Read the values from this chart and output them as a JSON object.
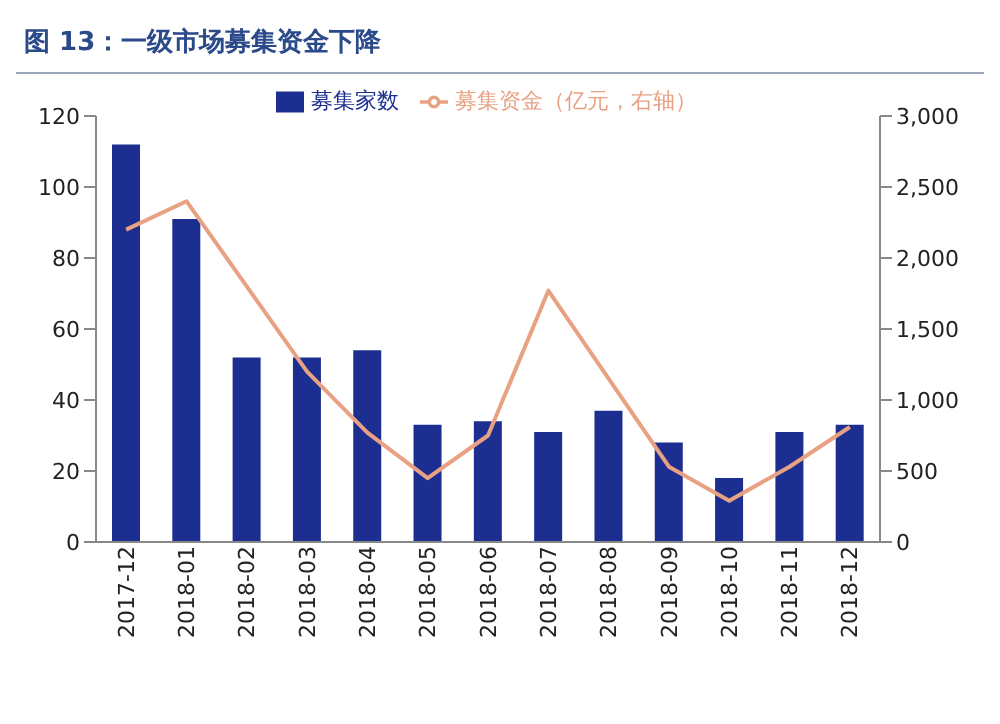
{
  "chart_data": {
    "type": "bar",
    "title": "图 13：一级市场募集资金下降",
    "categories": [
      "2017-12",
      "2018-01",
      "2018-02",
      "2018-03",
      "2018-04",
      "2018-05",
      "2018-06",
      "2018-07",
      "2018-08",
      "2018-09",
      "2018-10",
      "2018-11",
      "2018-12"
    ],
    "series": [
      {
        "name": "募集家数",
        "color": "#1c2f91",
        "values": [
          112,
          91,
          52,
          52,
          54,
          33,
          34,
          31,
          37,
          28,
          18,
          31,
          33
        ]
      },
      {
        "name": "募集资金（亿元，右轴）",
        "type": "line",
        "axis": "y2",
        "color": "#e8a283",
        "values": [
          2200,
          2400,
          1800,
          1200,
          770,
          450,
          750,
          1770,
          1150,
          530,
          290,
          530,
          810
        ]
      }
    ],
    "ylim": [
      0,
      120
    ],
    "yticks": [
      0,
      20,
      40,
      60,
      80,
      100,
      120
    ],
    "y2lim": [
      0,
      3000
    ],
    "y2ticks": [
      {
        "value": 0,
        "label": "0"
      },
      {
        "value": 500,
        "label": "500"
      },
      {
        "value": 1000,
        "label": "1,000"
      },
      {
        "value": 1500,
        "label": "1,500"
      },
      {
        "value": 2000,
        "label": "2,000"
      },
      {
        "value": 2500,
        "label": "2,500"
      },
      {
        "value": 3000,
        "label": "3,000"
      }
    ],
    "legend": "top",
    "grid": false,
    "marker": "none",
    "line_style": "solid"
  }
}
